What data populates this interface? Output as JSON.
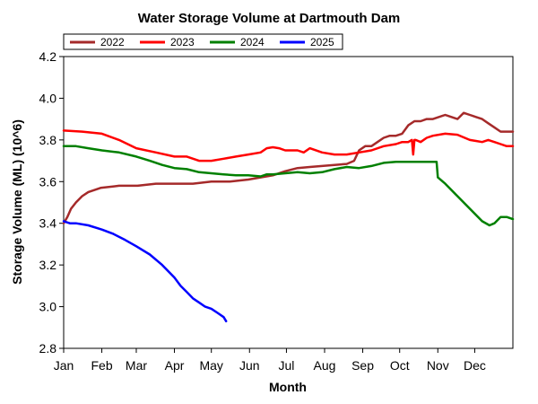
{
  "chart_data": {
    "type": "line",
    "title": "Water Storage Volume at Dartmouth Dam",
    "xlabel": "Month",
    "ylabel": "Storage Volume (ML) (10^6)",
    "ylim": [
      2.8,
      4.2
    ],
    "yticks": [
      2.8,
      3.0,
      3.2,
      3.4,
      3.6,
      3.8,
      4.0,
      4.2
    ],
    "ytick_labels": [
      "2.8",
      "3.0",
      "3.2",
      "3.4",
      "3.6",
      "3.8",
      "4.0",
      "4.2"
    ],
    "xlim": [
      0,
      365
    ],
    "x_unit": "day of year",
    "x_tick_positions": [
      0,
      31,
      59,
      90,
      120,
      151,
      181,
      212,
      243,
      273,
      304,
      334
    ],
    "x_tick_labels": [
      "Jan",
      "Feb",
      "Mar",
      "Apr",
      "May",
      "Jun",
      "Jul",
      "Aug",
      "Sep",
      "Oct",
      "Nov",
      "Dec"
    ],
    "grid": false,
    "legend_position": "top-left, above plot",
    "series": [
      {
        "name": "2022",
        "color": "#a52a2a",
        "x": [
          0,
          3,
          6,
          10,
          15,
          20,
          30,
          45,
          60,
          75,
          90,
          105,
          120,
          135,
          150,
          160,
          170,
          180,
          190,
          200,
          210,
          220,
          230,
          236,
          240,
          245,
          250,
          255,
          260,
          265,
          270,
          275,
          280,
          285,
          290,
          295,
          300,
          310,
          315,
          320,
          325,
          330,
          335,
          340,
          345,
          350,
          355,
          360,
          365
        ],
        "y": [
          3.4,
          3.43,
          3.47,
          3.5,
          3.53,
          3.55,
          3.57,
          3.58,
          3.58,
          3.59,
          3.59,
          3.59,
          3.6,
          3.6,
          3.61,
          3.62,
          3.63,
          3.65,
          3.665,
          3.67,
          3.675,
          3.68,
          3.685,
          3.7,
          3.75,
          3.77,
          3.77,
          3.79,
          3.81,
          3.82,
          3.82,
          3.83,
          3.87,
          3.89,
          3.89,
          3.9,
          3.9,
          3.92,
          3.91,
          3.9,
          3.93,
          3.92,
          3.91,
          3.9,
          3.88,
          3.86,
          3.84,
          3.84,
          3.84
        ]
      },
      {
        "name": "2023",
        "color": "#ff0000",
        "x": [
          0,
          15,
          31,
          45,
          59,
          75,
          90,
          100,
          110,
          120,
          130,
          140,
          150,
          160,
          165,
          170,
          175,
          180,
          190,
          195,
          200,
          210,
          220,
          230,
          240,
          250,
          260,
          270,
          275,
          280,
          283,
          284,
          285,
          286,
          290,
          295,
          300,
          310,
          320,
          330,
          335,
          340,
          345,
          350,
          355,
          360,
          365
        ],
        "y": [
          3.845,
          3.84,
          3.83,
          3.8,
          3.76,
          3.74,
          3.72,
          3.72,
          3.7,
          3.7,
          3.71,
          3.72,
          3.73,
          3.74,
          3.76,
          3.765,
          3.76,
          3.75,
          3.75,
          3.74,
          3.76,
          3.74,
          3.73,
          3.73,
          3.74,
          3.75,
          3.77,
          3.78,
          3.79,
          3.79,
          3.8,
          3.73,
          3.8,
          3.8,
          3.79,
          3.81,
          3.82,
          3.83,
          3.825,
          3.8,
          3.795,
          3.79,
          3.8,
          3.79,
          3.78,
          3.77,
          3.77
        ]
      },
      {
        "name": "2024",
        "color": "#008000",
        "x": [
          0,
          10,
          20,
          31,
          45,
          59,
          70,
          80,
          90,
          100,
          110,
          120,
          130,
          140,
          150,
          160,
          165,
          170,
          180,
          190,
          200,
          210,
          220,
          230,
          240,
          250,
          260,
          270,
          280,
          290,
          300,
          303,
          304,
          310,
          320,
          330,
          340,
          346,
          350,
          355,
          360,
          365
        ],
        "y": [
          3.77,
          3.77,
          3.76,
          3.75,
          3.74,
          3.72,
          3.7,
          3.68,
          3.665,
          3.66,
          3.645,
          3.64,
          3.635,
          3.63,
          3.63,
          3.625,
          3.635,
          3.635,
          3.64,
          3.645,
          3.64,
          3.645,
          3.66,
          3.67,
          3.665,
          3.675,
          3.69,
          3.695,
          3.695,
          3.695,
          3.695,
          3.695,
          3.62,
          3.59,
          3.53,
          3.47,
          3.41,
          3.39,
          3.4,
          3.43,
          3.43,
          3.42
        ]
      },
      {
        "name": "2025",
        "color": "#0000ff",
        "x": [
          0,
          5,
          10,
          20,
          31,
          40,
          50,
          59,
          70,
          80,
          90,
          95,
          100,
          105,
          110,
          115,
          120,
          125,
          130,
          132
        ],
        "y": [
          3.41,
          3.4,
          3.4,
          3.39,
          3.37,
          3.35,
          3.32,
          3.29,
          3.25,
          3.2,
          3.14,
          3.1,
          3.07,
          3.04,
          3.02,
          3.0,
          2.99,
          2.97,
          2.95,
          2.93
        ]
      }
    ]
  }
}
